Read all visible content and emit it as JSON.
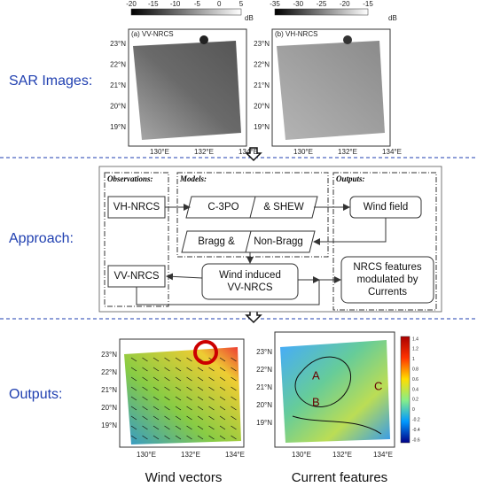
{
  "sections": [
    "SAR Images:",
    "Approach:",
    "Outputs:"
  ],
  "sar_images": [
    {
      "colorbar_ticks": [
        "-20",
        "-15",
        "-10",
        "-5",
        "0",
        "5"
      ],
      "colorbar_unit": "dB",
      "label": "(a) VV-NRCS"
    },
    {
      "colorbar_ticks": [
        "-35",
        "-30",
        "-25",
        "-20",
        "-15"
      ],
      "colorbar_unit": "dB",
      "label": "(b) VH-NRCS"
    }
  ],
  "lat_labels": [
    "23°N",
    "22°N",
    "21°N",
    "20°N",
    "19°N"
  ],
  "lon_labels": [
    "130°E",
    "132°E",
    "134°E"
  ],
  "approach": {
    "groups": [
      "Observations:",
      "Models:",
      "Outputs:"
    ],
    "nodes": [
      {
        "lines": [
          "VH-NRCS"
        ]
      },
      {
        "lines": [
          "C-3PO",
          "& SHEW"
        ]
      },
      {
        "lines": [
          "Wind field"
        ]
      },
      {
        "lines": [
          "Bragg &",
          "Non-Bragg"
        ]
      },
      {
        "lines": [
          "VV-NRCS"
        ]
      },
      {
        "lines": [
          "Wind induced",
          "VV-NRCS"
        ]
      },
      {
        "lines": [
          "NRCS features",
          "modulated by",
          "Currents"
        ]
      }
    ]
  },
  "outputs": {
    "panels": [
      {
        "caption": "Wind vectors"
      },
      {
        "caption": "Current features",
        "regions": [
          "A",
          "B",
          "C"
        ],
        "colorbar_ticks": [
          "1.4",
          "1.2",
          "1",
          "0.8",
          "0.6",
          "0.4",
          "0.2",
          "0",
          "-0.2",
          "-0.4",
          "-0.6"
        ]
      }
    ]
  }
}
